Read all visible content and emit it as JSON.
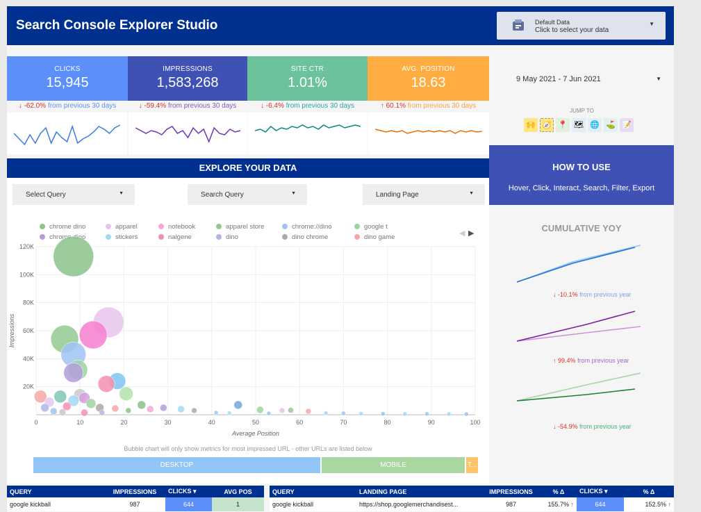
{
  "header": {
    "title": "Search Console Explorer Studio",
    "data_source": {
      "line1": "Default Data",
      "line2": "Click to select your data",
      "icon": "data-source-icon"
    }
  },
  "kpis": [
    {
      "label": "CLICKS",
      "value": "15,945",
      "color": "#5b8ff9",
      "change_arrow": "↓",
      "change_value": "-62.0%",
      "change_text": "from previous 30 days",
      "change_color": "#5b8ff9",
      "line_color": "#3b7ddd"
    },
    {
      "label": "IMPRESSIONS",
      "value": "1,583,268",
      "color": "#3f51b5",
      "change_arrow": "↓",
      "change_value": "-59.4%",
      "change_text": "from previous 30 days",
      "change_color": "#7e57c2",
      "line_color": "#6a35b8"
    },
    {
      "label": "SITE CTR",
      "value": "1.01%",
      "color": "#6cc29a",
      "change_arrow": "↓",
      "change_value": "-6.4%",
      "change_text": "from previous 30 days",
      "change_color": "#26a69a",
      "line_color": "#00897b"
    },
    {
      "label": "AVG. POSITION",
      "value": "18.63",
      "color": "#ffad40",
      "change_arrow": "↑",
      "change_value": "60.1%",
      "change_text": "from previous 30 days",
      "change_color": "#ffa040",
      "line_color": "#ef6c00"
    }
  ],
  "date": {
    "range": "9 May 2021 - 7 Jun 2021"
  },
  "jump": {
    "label": "JUMP TO",
    "icons": [
      {
        "name": "hands-icon",
        "glyph": "🙌"
      },
      {
        "name": "compass-icon",
        "glyph": "🧭"
      },
      {
        "name": "pin-icon",
        "glyph": "📍"
      },
      {
        "name": "map-icon",
        "glyph": "🗺"
      },
      {
        "name": "globe-icon",
        "glyph": "🌐"
      },
      {
        "name": "flag-icon",
        "glyph": "⛳"
      },
      {
        "name": "pencil-icon",
        "glyph": "📝"
      }
    ]
  },
  "explore": {
    "title": "EXPLORE YOUR DATA",
    "dropdowns": [
      "Select Query",
      "Search Query",
      "Landing Page"
    ]
  },
  "howto": {
    "title": "HOW TO USE",
    "subtitle": "Hover, Click, Interact, Search, Filter, Export"
  },
  "chart_data": {
    "type": "scatter",
    "title": "",
    "xlabel": "Average Position",
    "ylabel": "Impressions",
    "xlim": [
      0,
      100
    ],
    "ylim": [
      0,
      120000
    ],
    "x_ticks": [
      "0",
      "10",
      "20",
      "30",
      "40",
      "50",
      "60",
      "70",
      "80",
      "90",
      "100"
    ],
    "y_ticks": [
      "120K",
      "100K",
      "80K",
      "60K",
      "40K",
      "20K"
    ],
    "y_tick_values": [
      120000,
      100000,
      80000,
      60000,
      40000,
      20000
    ],
    "legend": [
      {
        "name": "chrome dino",
        "color": "#8bc38b"
      },
      {
        "name": "apparel",
        "color": "#e6c4ec"
      },
      {
        "name": "notebook",
        "color": "#f7a8d8"
      },
      {
        "name": "apparel store",
        "color": "#93c990"
      },
      {
        "name": "chrome://dino",
        "color": "#9fc3f5"
      },
      {
        "name": "google t",
        "color": "#9fd49f"
      },
      {
        "name": "chrome dino",
        "color": "#b39ddb"
      },
      {
        "name": "stickers",
        "color": "#a5d8f5"
      },
      {
        "name": "nalgene",
        "color": "#f48fb1"
      },
      {
        "name": "dino",
        "color": "#b0b6e8"
      },
      {
        "name": "dino chrome",
        "color": "#aaaaaa"
      },
      {
        "name": "dino game",
        "color": "#f4a7a7"
      }
    ],
    "points": [
      {
        "x": 8.5,
        "y": 113000,
        "r": 29,
        "color": "#8bc38b"
      },
      {
        "x": 16.5,
        "y": 66000,
        "r": 22,
        "color": "#e6c4ec"
      },
      {
        "x": 13,
        "y": 57000,
        "r": 20,
        "color": "#f77fd0"
      },
      {
        "x": 6.5,
        "y": 54000,
        "r": 20,
        "color": "#93c990"
      },
      {
        "x": 8.5,
        "y": 43000,
        "r": 18,
        "color": "#9fc3f5"
      },
      {
        "x": 9.5,
        "y": 32000,
        "r": 14,
        "color": "#9fd49f"
      },
      {
        "x": 8.5,
        "y": 30000,
        "r": 14,
        "color": "#b39ddb"
      },
      {
        "x": 18.5,
        "y": 24000,
        "r": 12,
        "color": "#80c4f5"
      },
      {
        "x": 16,
        "y": 22000,
        "r": 12,
        "color": "#f48fb1"
      },
      {
        "x": 20.5,
        "y": 15000,
        "r": 10,
        "color": "#b3e3a8"
      },
      {
        "x": 1,
        "y": 13000,
        "r": 9,
        "color": "#f4a7a7"
      },
      {
        "x": 5.5,
        "y": 13000,
        "r": 9,
        "color": "#7fc6b6"
      },
      {
        "x": 10,
        "y": 14000,
        "r": 9,
        "color": "#c9c9c9"
      },
      {
        "x": 11,
        "y": 12000,
        "r": 8,
        "color": "#d6a0e0"
      },
      {
        "x": 8.5,
        "y": 10000,
        "r": 8,
        "color": "#a5d8f5"
      },
      {
        "x": 3,
        "y": 9000,
        "r": 7,
        "color": "#e6c4ec"
      },
      {
        "x": 12.5,
        "y": 8000,
        "r": 7,
        "color": "#9fd49f"
      },
      {
        "x": 24,
        "y": 7000,
        "r": 6,
        "color": "#8bc38b"
      },
      {
        "x": 2,
        "y": 5000,
        "r": 6,
        "color": "#b0b6e8"
      },
      {
        "x": 7,
        "y": 6000,
        "r": 6,
        "color": "#f48fb1"
      },
      {
        "x": 14.5,
        "y": 5000,
        "r": 6,
        "color": "#aaaaaa"
      },
      {
        "x": 18,
        "y": 4500,
        "r": 5,
        "color": "#f4a7a7"
      },
      {
        "x": 29,
        "y": 5000,
        "r": 5,
        "color": "#b39ddb"
      },
      {
        "x": 33,
        "y": 4000,
        "r": 5,
        "color": "#a5d8f5"
      },
      {
        "x": 46,
        "y": 7000,
        "r": 6,
        "color": "#6fa8dc"
      },
      {
        "x": 51,
        "y": 3500,
        "r": 5,
        "color": "#9fd49f"
      },
      {
        "x": 26,
        "y": 4000,
        "r": 5,
        "color": "#f7a8d8"
      },
      {
        "x": 21,
        "y": 3000,
        "r": 4,
        "color": "#8bc38b"
      },
      {
        "x": 36,
        "y": 3000,
        "r": 4,
        "color": "#aaaaaa"
      },
      {
        "x": 56,
        "y": 3000,
        "r": 4,
        "color": "#e6c4ec"
      },
      {
        "x": 58,
        "y": 3200,
        "r": 4,
        "color": "#93c990"
      },
      {
        "x": 62,
        "y": 2500,
        "r": 4,
        "color": "#f4a7a7"
      },
      {
        "x": 4,
        "y": 2500,
        "r": 5,
        "color": "#9fc3f5"
      },
      {
        "x": 6,
        "y": 1800,
        "r": 5,
        "color": "#c9c9c9"
      },
      {
        "x": 11,
        "y": 1500,
        "r": 5,
        "color": "#f48fb1"
      },
      {
        "x": 15,
        "y": 1500,
        "r": 4,
        "color": "#b0b6e8"
      },
      {
        "x": 41,
        "y": 1500,
        "r": 3,
        "color": "#9fc3f5"
      },
      {
        "x": 44,
        "y": 1200,
        "r": 3,
        "color": "#a5d8f5"
      },
      {
        "x": 53,
        "y": 1000,
        "r": 3,
        "color": "#9fc3f5"
      },
      {
        "x": 66,
        "y": 1200,
        "r": 3,
        "color": "#a5d8f5"
      },
      {
        "x": 70,
        "y": 1000,
        "r": 3,
        "color": "#9fc3f5"
      },
      {
        "x": 74,
        "y": 800,
        "r": 3,
        "color": "#a5d8f5"
      },
      {
        "x": 79,
        "y": 700,
        "r": 3,
        "color": "#9fc3f5"
      },
      {
        "x": 84,
        "y": 600,
        "r": 3,
        "color": "#a5d8f5"
      },
      {
        "x": 89,
        "y": 600,
        "r": 3,
        "color": "#9fc3f5"
      },
      {
        "x": 94,
        "y": 500,
        "r": 3,
        "color": "#a5d8f5"
      },
      {
        "x": 98,
        "y": 500,
        "r": 3,
        "color": "#9fc3f5"
      }
    ]
  },
  "bubble_note": "Bubble chart will only show metrics for most impressed URL - other URLs are listed below",
  "devices": [
    {
      "label": "DESKTOP",
      "share": 0.645,
      "color": "#90c5f5"
    },
    {
      "label": "MOBILE",
      "share": 0.326,
      "color": "#a8d8a0"
    },
    {
      "label": "T...",
      "share": 0.029,
      "color": "#ffc46a"
    }
  ],
  "yoy": {
    "title": "CUMULATIVE YOY",
    "blocks": [
      {
        "arrow": "↓",
        "value": "-10.1%",
        "text": "from previous year",
        "color": "#7ea7e6",
        "line_cur": "#1e74d3",
        "line_prev": "#90c5f5"
      },
      {
        "arrow": "↑",
        "value": "99.4%",
        "text": "from previous year",
        "color": "#9c6ad0",
        "line_cur": "#7b1fa2",
        "line_prev": "#ce93d8"
      },
      {
        "arrow": "↓",
        "value": "-54.9%",
        "text": "from previous year",
        "color": "#4caf7a",
        "line_cur": "#1b7e2e",
        "line_prev": "#a5d6a7"
      }
    ]
  },
  "table1": {
    "headers": [
      "QUERY",
      "IMPRESSIONS",
      "CLICKS ▾",
      "AVG POS"
    ],
    "row": [
      "google kickball",
      "987",
      "644",
      "1"
    ]
  },
  "table2": {
    "headers": [
      "QUERY",
      "LANDING PAGE",
      "IMPRESSIONS",
      "% Δ",
      "CLICKS ▾",
      "% Δ"
    ],
    "row": [
      "google kickball",
      "https://shop.googlemerchandisest...",
      "987",
      "155.7%",
      "644",
      "152.5%"
    ],
    "row_arrows": [
      "↑",
      "↑"
    ]
  }
}
